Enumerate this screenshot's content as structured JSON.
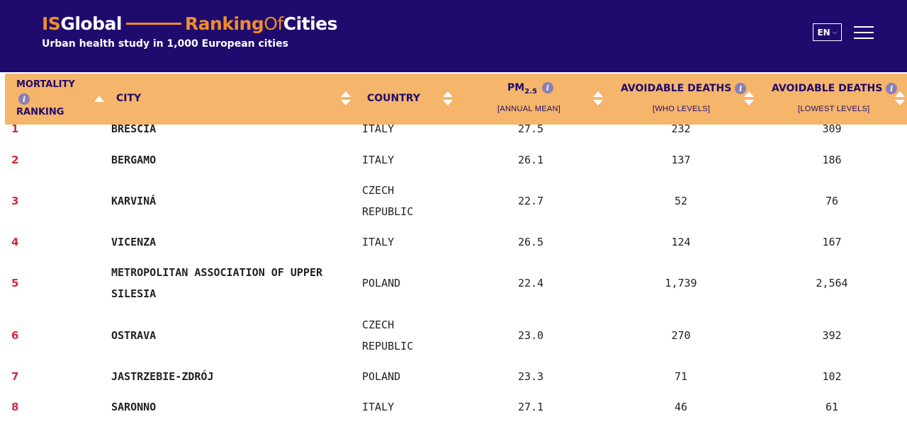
{
  "header": {
    "logo": {
      "is": "IS",
      "global": "Global",
      "ranking": "Ranking",
      "of": "Of",
      "cities": "Cities"
    },
    "tagline": "Urban health study in 1,000 European cities",
    "language": "EN"
  },
  "table": {
    "columns": {
      "ranking": {
        "line1": "MORTALITY",
        "line2": "RANKING",
        "info_glyph": "i"
      },
      "city": "CITY",
      "country": "COUNTRY",
      "pm": {
        "label": "PM",
        "sub": "2.5",
        "caption": "[ANNUAL MEAN]",
        "info_glyph": "i"
      },
      "who": {
        "label": "AVOIDABLE DEATHS",
        "caption": "[WHO LEVELS]",
        "info_glyph": "i"
      },
      "lowest": {
        "label": "AVOIDABLE DEATHS",
        "caption": "[LOWEST LEVELS]",
        "info_glyph": "i"
      }
    },
    "rows": [
      {
        "rank": "1",
        "city": [
          "BRESCIA"
        ],
        "country": [
          "ITALY"
        ],
        "pm": "27.5",
        "who": "232",
        "lowest": "309"
      },
      {
        "rank": "2",
        "city": [
          "BERGAMO"
        ],
        "country": [
          "ITALY"
        ],
        "pm": "26.1",
        "who": "137",
        "lowest": "186"
      },
      {
        "rank": "3",
        "city": [
          "KARVINÁ"
        ],
        "country": [
          "CZECH",
          "REPUBLIC"
        ],
        "pm": "22.7",
        "who": "52",
        "lowest": "76"
      },
      {
        "rank": "4",
        "city": [
          "VICENZA"
        ],
        "country": [
          "ITALY"
        ],
        "pm": "26.5",
        "who": "124",
        "lowest": "167"
      },
      {
        "rank": "5",
        "city": [
          "METROPOLITAN ASSOCIATION OF UPPER",
          "SILESIA"
        ],
        "country": [
          "POLAND"
        ],
        "pm": "22.4",
        "who": "1,739",
        "lowest": "2,564"
      },
      {
        "rank": "6",
        "city": [
          "OSTRAVA"
        ],
        "country": [
          "CZECH",
          "REPUBLIC"
        ],
        "pm": "23.0",
        "who": "270",
        "lowest": "392"
      },
      {
        "rank": "7",
        "city": [
          "JASTRZEBIE-ZDRÓJ"
        ],
        "country": [
          "POLAND"
        ],
        "pm": "23.3",
        "who": "71",
        "lowest": "102"
      },
      {
        "rank": "8",
        "city": [
          "SARONNO"
        ],
        "country": [
          "ITALY"
        ],
        "pm": "27.1",
        "who": "46",
        "lowest": "61"
      }
    ]
  },
  "colors": {
    "header_bg": "#1f0b6e",
    "accent_orange": "#f08c2c",
    "table_header_bg": "#f5b56a",
    "rank_red": "#d42a36",
    "info_badge": "#8a7fb4"
  }
}
